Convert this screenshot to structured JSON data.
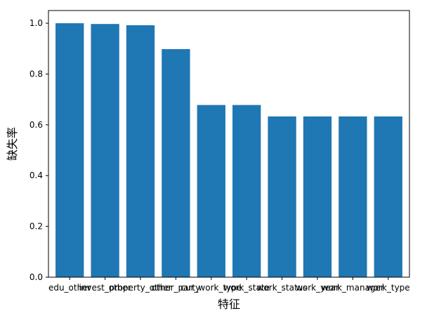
{
  "chart_data": {
    "type": "bar",
    "xlabel": "特征",
    "ylabel": "缺失率",
    "categories": [
      "edu_other",
      "invest_other",
      "property_other",
      "other_party",
      "cur_work_type",
      "work_state",
      "work_status",
      "work_year",
      "work_manager",
      "work_type"
    ],
    "values": [
      1.0,
      0.997,
      0.992,
      0.898,
      0.678,
      0.678,
      0.633,
      0.633,
      0.633,
      0.633
    ],
    "ylim": [
      0,
      1.05
    ],
    "yticks": [
      "0.0",
      "0.2",
      "0.4",
      "0.6",
      "0.8",
      "1.0"
    ],
    "grid": false,
    "bar_color": "#1f77b4"
  }
}
